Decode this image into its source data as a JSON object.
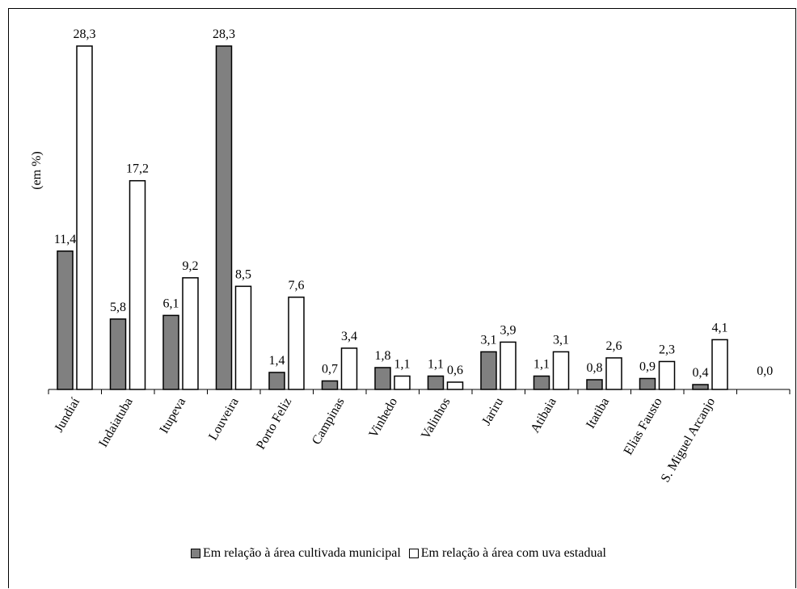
{
  "chart_data": {
    "type": "bar",
    "ylabel": "(em %)",
    "categories": [
      "Jundiaí",
      "Indaiatuba",
      "Itupeva",
      "Louveira",
      "Porto Feliz",
      "Campinas",
      "Vinhedo",
      "Valinhos",
      "Jariru",
      "Atibaia",
      "Itatiba",
      "Elias Fausto",
      "S. Miguel Arcanjo",
      ""
    ],
    "series": [
      {
        "name": "Em relação à área cultivada municipal",
        "color": "#808080",
        "values": [
          11.4,
          5.8,
          6.1,
          28.3,
          1.4,
          0.7,
          1.8,
          1.1,
          3.1,
          1.1,
          0.8,
          0.9,
          0.4,
          0.0
        ],
        "labels": [
          "11,4",
          "5,8",
          "6,1",
          "28,3",
          "1,4",
          "0,7",
          "1,8",
          "1,1",
          "3,1",
          "1,1",
          "0,8",
          "0,9",
          "0,4",
          "0,0"
        ]
      },
      {
        "name": "Em relação à área com uva estadual",
        "color": "#ffffff",
        "values": [
          28.3,
          17.2,
          9.2,
          8.5,
          7.6,
          3.4,
          1.1,
          0.6,
          3.9,
          3.1,
          2.6,
          2.3,
          4.1,
          null
        ],
        "labels": [
          "28,3",
          "17,2",
          "9,2",
          "8,5",
          "7,6",
          "3,4",
          "1,1",
          "0,6",
          "3,9",
          "3,1",
          "2,6",
          "2,3",
          "4,1",
          ""
        ]
      }
    ],
    "ylim": [
      0,
      30
    ],
    "grid": false,
    "legend_position": "bottom"
  }
}
